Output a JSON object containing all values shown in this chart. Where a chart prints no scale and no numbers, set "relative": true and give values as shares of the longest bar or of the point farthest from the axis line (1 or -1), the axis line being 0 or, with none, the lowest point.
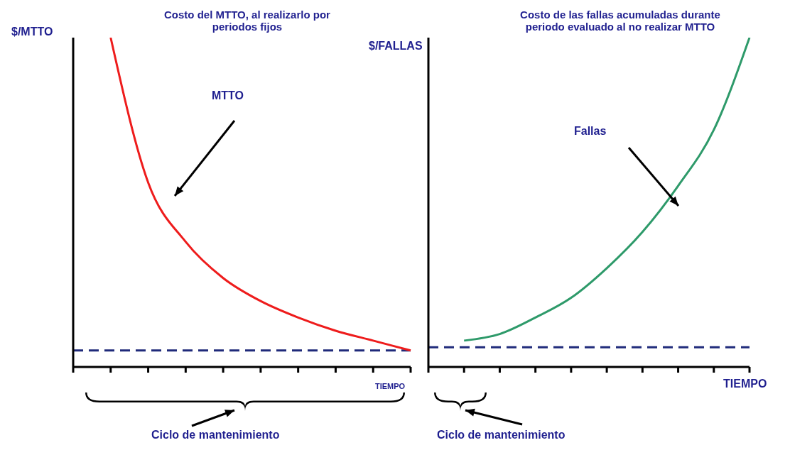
{
  "chart_data": [
    {
      "type": "line",
      "title": "Costo del MTTO, al realizarlo por periodos fijos",
      "ylabel": "$/MTTO",
      "xlabel": "TIEMPO",
      "relative": true,
      "categories": [
        null,
        null,
        null,
        null,
        null,
        null,
        null,
        null,
        null,
        null
      ],
      "series": [
        {
          "name": "MTTO",
          "color": "#ee1c1c",
          "values": [
            null,
            1.0,
            0.56,
            0.38,
            0.27,
            0.2,
            0.15,
            0.11,
            0.08,
            0.05
          ]
        }
      ],
      "ref_lines": [
        {
          "axis": "y",
          "value": 0.05,
          "color": "#1f2a7a",
          "line_style": "dashed"
        }
      ],
      "annotations": [
        "Ciclo de mantenimiento"
      ]
    },
    {
      "type": "line",
      "title": "Costo de las fallas acumuladas durante periodo evaluado al no realizar MTTO",
      "ylabel": "$/FALLAS",
      "xlabel": "TIEMPO",
      "relative": true,
      "categories": [
        null,
        null,
        null,
        null,
        null,
        null,
        null,
        null,
        null,
        null
      ],
      "series": [
        {
          "name": "Fallas",
          "color": "#2e9a6a",
          "values": [
            null,
            0.08,
            0.1,
            0.15,
            0.21,
            0.3,
            0.41,
            0.55,
            0.72,
            1.0
          ]
        }
      ],
      "ref_lines": [
        {
          "axis": "y",
          "value": 0.06,
          "color": "#1f2a7a",
          "line_style": "dashed"
        }
      ],
      "annotations": [
        "Ciclo de mantenimiento"
      ]
    }
  ]
}
